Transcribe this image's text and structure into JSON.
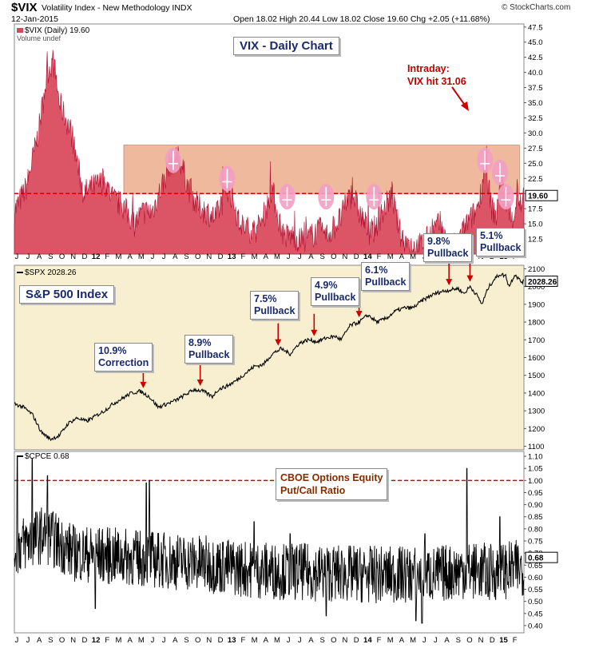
{
  "header": {
    "symbol": "$VIX",
    "description": "Volatility Index - New Methodology",
    "exchange": "INDX",
    "date": "12-Jan-2015",
    "ohlc": "Open 18.02  High 20.44  Low 18.02  Close 19.60  Chg +2.05 (+11.68%)",
    "copyright": "© StockCharts.com"
  },
  "colors": {
    "vix_fill": "#d9465a",
    "vix_zone": "#e8a27c",
    "spx_bg": "#f7efcf",
    "reference_line": "#cc0000",
    "annotation_arrow": "#cc0000",
    "label_text": "#1a2a6c"
  },
  "x_labels": [
    "J",
    "J",
    "A",
    "S",
    "O",
    "N",
    "D",
    "12",
    "F",
    "M",
    "A",
    "M",
    "J",
    "J",
    "A",
    "S",
    "O",
    "N",
    "D",
    "13",
    "F",
    "M",
    "A",
    "M",
    "J",
    "J",
    "A",
    "S",
    "O",
    "N",
    "D",
    "14",
    "F",
    "M",
    "A",
    "M",
    "J",
    "J",
    "A",
    "S",
    "O",
    "N",
    "D",
    "15",
    "F"
  ],
  "chart_data": [
    {
      "type": "area",
      "legend": "$VIX (Daily) 19.60",
      "legend2": "Volume undef",
      "title": "VIX - Daily Chart",
      "annotation": "Intraday:\nVIX hit 31.06",
      "last_value": "19.60",
      "ref_value": 20,
      "zone": [
        20,
        28
      ],
      "ylim": [
        10,
        48
      ],
      "yticks": [
        "47.5",
        "45.0",
        "42.5",
        "40.0",
        "37.5",
        "35.0",
        "32.5",
        "30.0",
        "27.5",
        "25.0",
        "22.5",
        "20.0",
        "17.5",
        "15.0",
        "12.5"
      ],
      "points": [
        [
          0,
          17
        ],
        [
          4,
          21
        ],
        [
          8,
          30
        ],
        [
          11,
          40
        ],
        [
          13,
          42
        ],
        [
          15,
          35
        ],
        [
          19,
          30
        ],
        [
          23,
          20
        ],
        [
          26,
          21
        ],
        [
          30,
          22
        ],
        [
          33,
          19
        ],
        [
          36,
          18
        ],
        [
          40,
          15
        ],
        [
          43,
          17
        ],
        [
          46,
          17
        ],
        [
          49,
          21
        ],
        [
          52,
          25
        ],
        [
          55,
          26
        ],
        [
          58,
          21
        ],
        [
          61,
          18
        ],
        [
          64,
          17
        ],
        [
          67,
          16
        ],
        [
          69,
          18
        ],
        [
          71,
          21
        ],
        [
          73,
          19
        ],
        [
          75,
          15
        ],
        [
          78,
          14
        ],
        [
          81,
          14
        ],
        [
          83,
          16
        ],
        [
          85,
          19
        ],
        [
          86,
          21
        ],
        [
          88,
          16
        ],
        [
          90,
          13
        ],
        [
          93,
          13
        ],
        [
          96,
          12
        ],
        [
          99,
          13
        ],
        [
          102,
          14
        ],
        [
          104,
          13
        ],
        [
          106,
          14
        ],
        [
          109,
          16
        ],
        [
          111,
          19
        ],
        [
          113,
          20
        ],
        [
          115,
          17
        ],
        [
          117,
          15
        ],
        [
          119,
          13
        ],
        [
          121,
          15
        ],
        [
          124,
          18
        ],
        [
          126,
          20
        ],
        [
          127,
          17
        ],
        [
          129,
          13
        ],
        [
          131,
          12
        ],
        [
          134,
          11
        ],
        [
          137,
          12
        ],
        [
          140,
          14
        ],
        [
          142,
          15
        ],
        [
          144,
          12
        ],
        [
          146,
          11
        ],
        [
          148,
          12
        ],
        [
          151,
          15
        ],
        [
          154,
          17
        ],
        [
          156,
          21
        ],
        [
          157,
          26
        ],
        [
          159,
          18
        ],
        [
          161,
          16
        ],
        [
          162,
          24
        ],
        [
          164,
          19
        ],
        [
          166,
          15
        ],
        [
          168,
          20
        ],
        [
          169,
          18
        ]
      ],
      "spikes": [
        [
          53,
          26
        ],
        [
          71,
          23
        ],
        [
          91,
          20
        ],
        [
          104,
          20
        ],
        [
          120,
          20
        ],
        [
          157,
          26
        ],
        [
          162,
          24
        ],
        [
          164,
          20
        ]
      ]
    },
    {
      "type": "line",
      "legend": "$SPX 2028.26",
      "title": "S&P 500 Index",
      "last_value": "2028.26",
      "ylim": [
        1080,
        2120
      ],
      "yticks": [
        "2100",
        "2000",
        "1900",
        "1800",
        "1700",
        "1600",
        "1500",
        "1400",
        "1300",
        "1200",
        "1100"
      ],
      "points": [
        [
          0,
          1340
        ],
        [
          3,
          1320
        ],
        [
          6,
          1280
        ],
        [
          9,
          1180
        ],
        [
          12,
          1140
        ],
        [
          15,
          1160
        ],
        [
          18,
          1230
        ],
        [
          21,
          1260
        ],
        [
          24,
          1240
        ],
        [
          27,
          1270
        ],
        [
          30,
          1300
        ],
        [
          33,
          1340
        ],
        [
          36,
          1370
        ],
        [
          39,
          1400
        ],
        [
          42,
          1410
        ],
        [
          45,
          1380
        ],
        [
          48,
          1320
        ],
        [
          51,
          1340
        ],
        [
          54,
          1360
        ],
        [
          57,
          1390
        ],
        [
          60,
          1420
        ],
        [
          63,
          1410
        ],
        [
          66,
          1380
        ],
        [
          68,
          1420
        ],
        [
          71,
          1440
        ],
        [
          74,
          1470
        ],
        [
          77,
          1510
        ],
        [
          80,
          1550
        ],
        [
          83,
          1560
        ],
        [
          86,
          1620
        ],
        [
          89,
          1650
        ],
        [
          92,
          1620
        ],
        [
          95,
          1680
        ],
        [
          98,
          1700
        ],
        [
          101,
          1690
        ],
        [
          104,
          1710
        ],
        [
          107,
          1720
        ],
        [
          109,
          1700
        ],
        [
          112,
          1780
        ],
        [
          115,
          1800
        ],
        [
          118,
          1840
        ],
        [
          121,
          1800
        ],
        [
          124,
          1820
        ],
        [
          127,
          1860
        ],
        [
          130,
          1880
        ],
        [
          133,
          1880
        ],
        [
          136,
          1920
        ],
        [
          139,
          1950
        ],
        [
          142,
          1970
        ],
        [
          145,
          1980
        ],
        [
          148,
          1990
        ],
        [
          150,
          1960
        ],
        [
          152,
          2000
        ],
        [
          154,
          1960
        ],
        [
          156,
          1900
        ],
        [
          158,
          1990
        ],
        [
          160,
          2040
        ],
        [
          162,
          2070
        ],
        [
          164,
          2060
        ],
        [
          165,
          2000
        ],
        [
          167,
          2070
        ],
        [
          169,
          2028
        ]
      ],
      "labels": [
        "10.9%\nCorrection",
        "8.9%\nPullback",
        "7.5%\nPullback",
        "4.9%\nPullback",
        "6.1%\nPullback",
        "9.8%\nPullback",
        "5.1%\nPullback"
      ],
      "arrow_x": [
        43,
        62,
        88,
        100,
        115,
        145,
        152
      ]
    },
    {
      "type": "line",
      "legend": "$CPCE 0.68",
      "title": "CBOE Options Equity\nPut/Call Ratio",
      "last_value": "0.68",
      "ref_value": 1.0,
      "ylim": [
        0.37,
        1.12
      ],
      "yticks": [
        "1.10",
        "1.05",
        "1.00",
        "0.95",
        "0.90",
        "0.85",
        "0.80",
        "0.75",
        "0.70",
        "0.65",
        "0.60",
        "0.55",
        "0.50",
        "0.45",
        "0.40"
      ],
      "base": [
        [
          0,
          0.72
        ],
        [
          10,
          0.78
        ],
        [
          20,
          0.7
        ],
        [
          40,
          0.68
        ],
        [
          60,
          0.66
        ],
        [
          80,
          0.63
        ],
        [
          100,
          0.62
        ],
        [
          120,
          0.61
        ],
        [
          140,
          0.61
        ],
        [
          150,
          0.63
        ],
        [
          160,
          0.62
        ],
        [
          170,
          0.64
        ]
      ],
      "peaks": [
        [
          1,
          1.1
        ],
        [
          6,
          1.09
        ],
        [
          11,
          1.02
        ],
        [
          44,
          0.99
        ],
        [
          45,
          1.0
        ],
        [
          80,
          0.83
        ],
        [
          92,
          0.78
        ],
        [
          137,
          0.78
        ],
        [
          151,
          1.05
        ],
        [
          162,
          0.85
        ]
      ],
      "troughs": [
        [
          27,
          0.47
        ],
        [
          104,
          0.44
        ],
        [
          136,
          0.41
        ],
        [
          134,
          0.42
        ],
        [
          158,
          0.52
        ]
      ]
    }
  ]
}
